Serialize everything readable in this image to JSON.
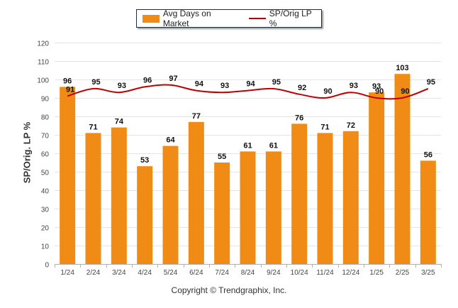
{
  "chart_data": {
    "type": "bar",
    "categories": [
      "1/24",
      "2/24",
      "3/24",
      "4/24",
      "5/24",
      "6/24",
      "7/24",
      "8/24",
      "9/24",
      "10/24",
      "11/24",
      "12/24",
      "1/25",
      "2/25",
      "3/25"
    ],
    "series": [
      {
        "name": "Avg Days on Market",
        "type": "bar",
        "color": "#f08c15",
        "values": [
          96,
          71,
          74,
          53,
          64,
          77,
          55,
          61,
          61,
          76,
          71,
          72,
          93,
          103,
          56
        ]
      },
      {
        "name": "SP/Orig LP %",
        "type": "line",
        "color": "#c00000",
        "values": [
          91,
          95,
          93,
          96,
          97,
          94,
          93,
          94,
          95,
          92,
          90,
          93,
          90,
          90,
          95
        ]
      }
    ],
    "title": "",
    "xlabel": "",
    "ylabel": "SP/Orig. LP %",
    "ylim": [
      0,
      120
    ],
    "yticks": [
      0,
      10,
      20,
      30,
      40,
      50,
      60,
      70,
      80,
      90,
      100,
      110,
      120
    ],
    "grid": true,
    "legend_position": "top-center"
  },
  "footer": {
    "copyright": "Copyright © Trendgraphix, Inc."
  }
}
